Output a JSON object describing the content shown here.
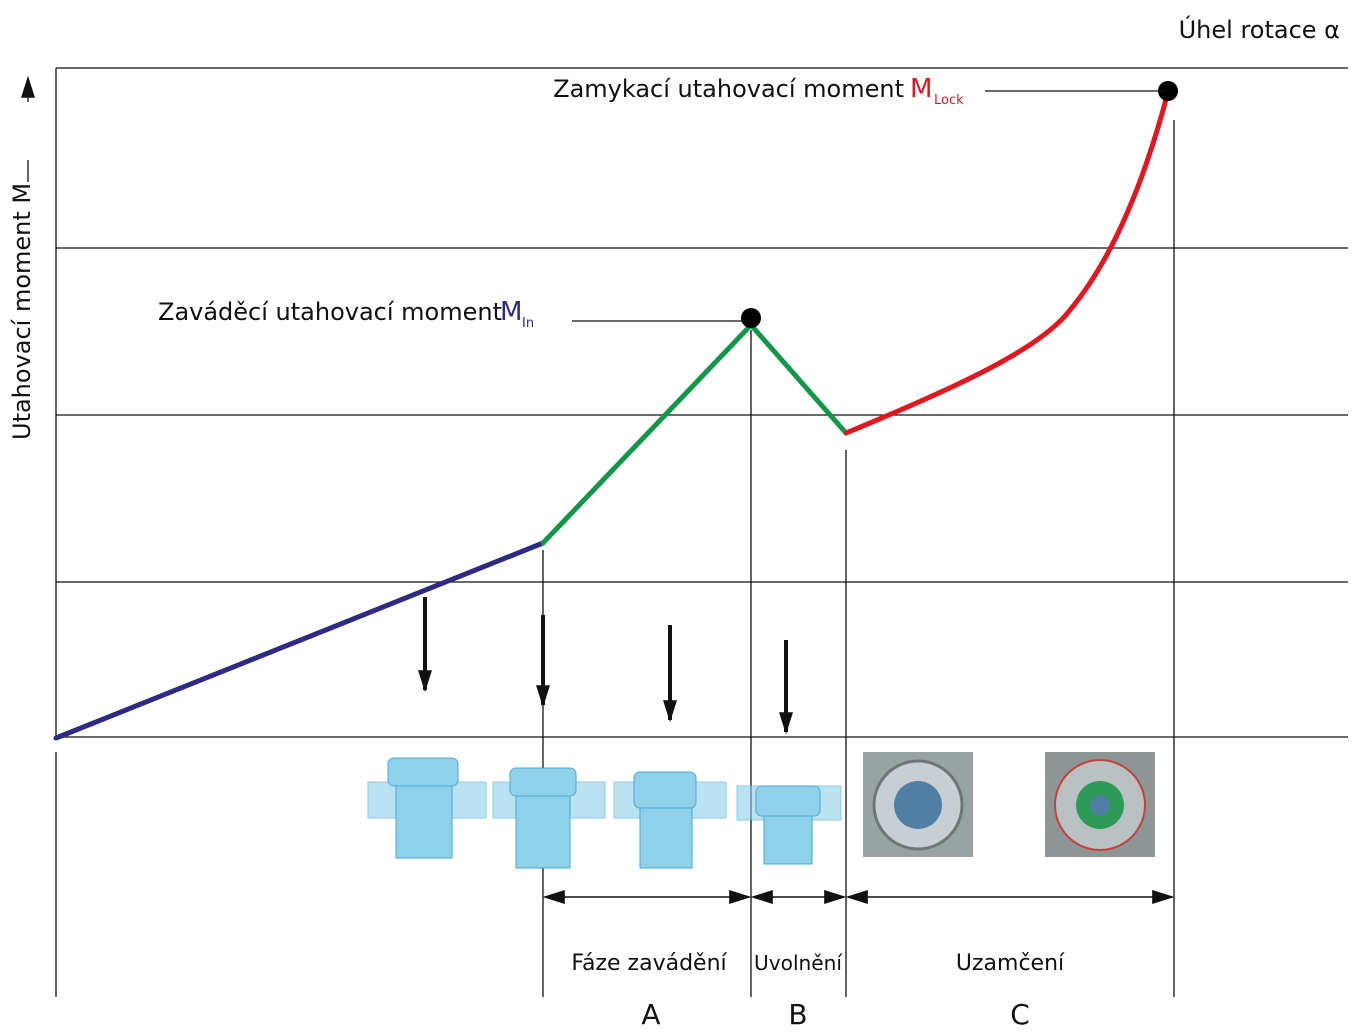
{
  "axes": {
    "x_label": "Úhel rotace  α",
    "y_label": "Utahovací moment M"
  },
  "points": {
    "lock": {
      "text": "Zamykací  utahovací moment",
      "symbol": "M",
      "subscript": "Lock"
    },
    "insertion": {
      "text": "Zaváděcí utahovací moment",
      "symbol": "M",
      "subscript": "In"
    }
  },
  "phases": [
    {
      "name": "Fáze zavádění",
      "letter": "A"
    },
    {
      "name": "Uvolnění",
      "letter": "B"
    },
    {
      "name": "Uzamčení",
      "letter": "C"
    }
  ]
}
